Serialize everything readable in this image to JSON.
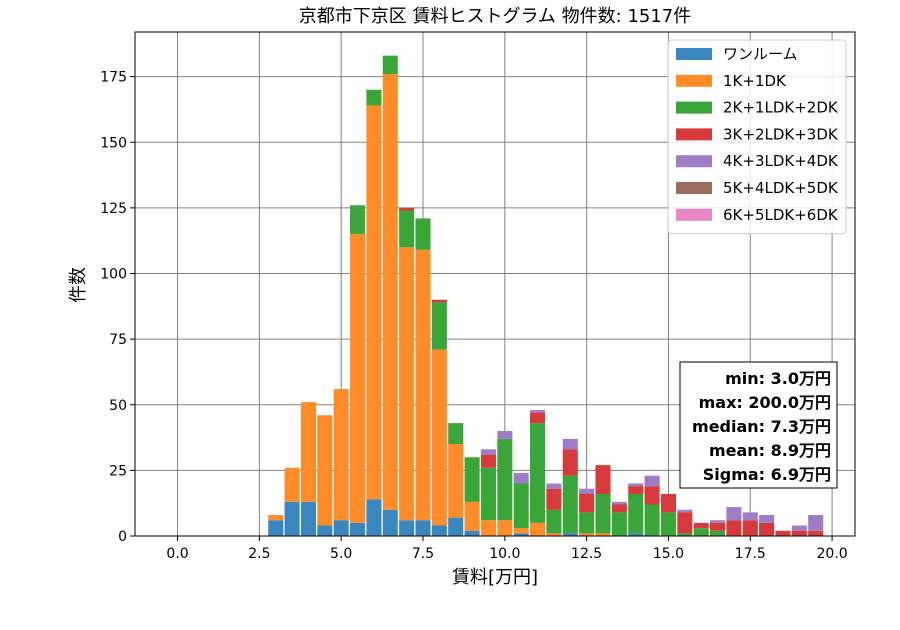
{
  "chart_data": {
    "type": "bar",
    "stacked": true,
    "title": "京都市下京区 賃料ヒストグラム  物件数: 1517件",
    "xlabel": "賃料[万円]",
    "ylabel": "件数",
    "xlim": [
      -1.3,
      20.7
    ],
    "ylim": [
      0,
      192
    ],
    "xticks": [
      0.0,
      2.5,
      5.0,
      7.5,
      10.0,
      12.5,
      15.0,
      17.5,
      20.0
    ],
    "xtick_labels": [
      "0.0",
      "2.5",
      "5.0",
      "7.5",
      "10.0",
      "12.5",
      "15.0",
      "17.5",
      "20.0"
    ],
    "yticks": [
      0,
      25,
      50,
      75,
      100,
      125,
      150,
      175
    ],
    "ytick_labels": [
      "0",
      "25",
      "50",
      "75",
      "100",
      "125",
      "150",
      "175"
    ],
    "grid": true,
    "legend_position": "top-right",
    "bin_width": 0.5,
    "x": [
      3.0,
      3.5,
      4.0,
      4.5,
      5.0,
      5.5,
      6.0,
      6.5,
      7.0,
      7.5,
      8.0,
      8.5,
      9.0,
      9.5,
      10.0,
      10.5,
      11.0,
      11.5,
      12.0,
      12.5,
      13.0,
      13.5,
      14.0,
      14.5,
      15.0,
      15.5,
      16.0,
      16.5,
      17.0,
      17.5,
      18.0,
      18.5,
      19.0,
      19.5
    ],
    "series": [
      {
        "name": "ワンルーム",
        "color": "#3a87bf",
        "values": [
          6,
          13,
          13,
          4,
          6,
          5,
          14,
          10,
          6,
          6,
          4,
          7,
          2,
          0,
          0,
          1,
          0,
          0,
          1,
          0,
          0,
          0,
          1,
          0,
          0,
          0,
          0,
          0,
          0,
          0,
          0,
          0,
          0,
          0
        ]
      },
      {
        "name": "1K+1DK",
        "color": "#ff8c29",
        "values": [
          2,
          13,
          38,
          42,
          50,
          110,
          150,
          166,
          104,
          103,
          67,
          28,
          11,
          6,
          6,
          2,
          5,
          1,
          0,
          1,
          1,
          0,
          0,
          0,
          0,
          0,
          0,
          0,
          0,
          0,
          0,
          0,
          0,
          0
        ]
      },
      {
        "name": "2K+1LDK+2DK",
        "color": "#3aa63a",
        "values": [
          0,
          0,
          0,
          0,
          0,
          11,
          6,
          7,
          14,
          12,
          18,
          8,
          17,
          20,
          31,
          17,
          38,
          9,
          22,
          8,
          15,
          9,
          15,
          12,
          9,
          1,
          3,
          2,
          0,
          0,
          0,
          0,
          0,
          0
        ]
      },
      {
        "name": "3K+2LDK+3DK",
        "color": "#d63a3a",
        "values": [
          0,
          0,
          0,
          0,
          0,
          0,
          0,
          0,
          1,
          0,
          1,
          0,
          0,
          5,
          0,
          0,
          4,
          8,
          10,
          7,
          11,
          3,
          3,
          7,
          7,
          8,
          2,
          3,
          6,
          6,
          5,
          2,
          2,
          2
        ]
      },
      {
        "name": "4K+3LDK+4DK",
        "color": "#a07cc8",
        "values": [
          0,
          0,
          0,
          0,
          0,
          0,
          0,
          0,
          0,
          0,
          0,
          0,
          0,
          2,
          3,
          4,
          1,
          2,
          4,
          2,
          0,
          1,
          1,
          4,
          0,
          1,
          0,
          1,
          5,
          3,
          3,
          0,
          2,
          6
        ]
      },
      {
        "name": "5K+4LDK+5DK",
        "color": "#9b6b5c",
        "values": [
          0,
          0,
          0,
          0,
          0,
          0,
          0,
          0,
          0,
          0,
          0,
          0,
          0,
          0,
          0,
          0,
          0,
          0,
          0,
          0,
          0,
          0,
          0,
          0,
          0,
          0,
          0,
          0,
          0,
          0,
          0,
          0,
          0,
          0
        ]
      },
      {
        "name": "6K+5LDK+6DK",
        "color": "#e887c8",
        "values": [
          0,
          0,
          0,
          0,
          0,
          0,
          0,
          0,
          0,
          0,
          0,
          0,
          0,
          0,
          0,
          0,
          0,
          0,
          0,
          0,
          0,
          0,
          0,
          0,
          0,
          0,
          0,
          0,
          0,
          0,
          0,
          0,
          0,
          0
        ]
      }
    ],
    "stats": [
      "min: 3.0万円",
      "max: 200.0万円",
      "median: 7.3万円",
      "mean: 8.9万円",
      "Sigma: 6.9万円"
    ]
  }
}
